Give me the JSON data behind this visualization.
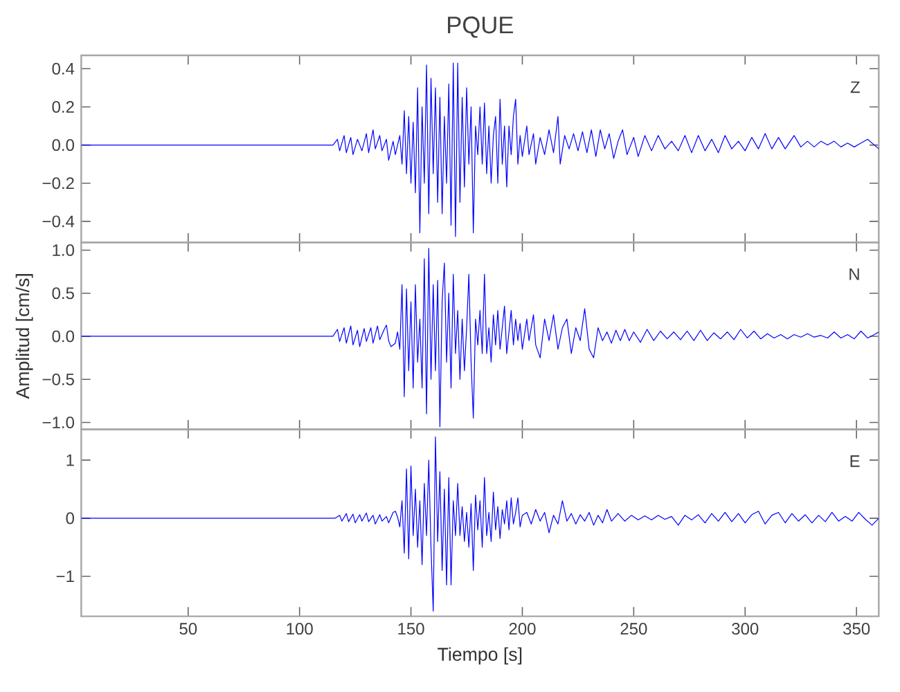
{
  "chart_data": [
    {
      "type": "line",
      "title": "PQUE",
      "color": "#0000ff",
      "annotations": [
        "Z"
      ],
      "tick_labels": "y",
      "xlim": [
        2,
        360
      ],
      "xticks": [
        50,
        100,
        150,
        200,
        250,
        300,
        350
      ],
      "ylim": [
        -0.51,
        0.47
      ],
      "yticks": [
        {
          "value": -0.4,
          "label": "−0.4"
        },
        {
          "value": -0.2,
          "label": "−0.2"
        },
        {
          "value": 0,
          "label": "0.0"
        },
        {
          "value": 0.2,
          "label": "0.2"
        },
        {
          "value": 0.4,
          "label": "0.4"
        }
      ],
      "x": [
        2,
        50,
        100,
        115,
        117,
        118,
        120,
        121,
        123,
        124,
        126,
        128,
        130,
        131,
        133,
        134,
        136,
        137,
        139,
        140,
        142,
        143,
        145,
        146,
        147,
        148,
        149,
        150,
        151,
        152,
        153,
        154,
        155,
        156,
        157,
        158,
        159,
        160,
        161,
        162,
        163,
        164,
        165,
        166,
        167,
        168,
        169,
        170,
        171,
        172,
        173,
        174,
        175,
        176,
        177,
        178,
        179,
        180,
        181,
        182,
        183,
        184,
        185,
        186,
        187,
        188,
        189,
        190,
        191,
        192,
        193,
        194,
        195,
        196,
        197,
        198,
        199,
        200,
        202,
        203,
        205,
        206,
        208,
        210,
        212,
        214,
        216,
        217,
        219,
        221,
        223,
        225,
        227,
        229,
        231,
        233,
        235,
        237,
        239,
        241,
        243,
        245,
        247,
        250,
        252,
        255,
        258,
        261,
        264,
        267,
        270,
        273,
        276,
        279,
        282,
        285,
        288,
        291,
        294,
        297,
        300,
        303,
        306,
        309,
        312,
        315,
        318,
        322,
        325,
        328,
        331,
        334,
        337,
        340,
        343,
        346,
        349,
        352,
        355,
        358,
        360
      ],
      "values": [
        0,
        0,
        0,
        0,
        0.03,
        -0.03,
        0.05,
        -0.04,
        0.04,
        -0.05,
        0.03,
        -0.03,
        0.06,
        -0.04,
        0.08,
        -0.02,
        0.05,
        -0.03,
        0.03,
        -0.08,
        0.02,
        -0.05,
        0.05,
        -0.1,
        0.18,
        -0.15,
        0.15,
        -0.2,
        0.12,
        -0.25,
        0.3,
        -0.46,
        0.2,
        -0.2,
        0.42,
        -0.36,
        0.35,
        -0.15,
        0.3,
        -0.3,
        0.25,
        -0.36,
        0.15,
        -0.2,
        0.32,
        -0.42,
        0.43,
        -0.48,
        0.43,
        -0.3,
        0.25,
        -0.22,
        0.3,
        -0.1,
        0.2,
        -0.46,
        0.1,
        -0.05,
        0.2,
        -0.1,
        0.22,
        -0.15,
        0.1,
        -0.2,
        0.05,
        0.15,
        -0.2,
        0.24,
        -0.1,
        0.1,
        -0.22,
        0.1,
        -0.05,
        0.15,
        0.24,
        -0.1,
        0.05,
        -0.06,
        0.1,
        -0.05,
        0.06,
        -0.1,
        0.04,
        -0.05,
        0.08,
        -0.04,
        0.15,
        -0.1,
        0.05,
        -0.02,
        0.06,
        -0.03,
        0.07,
        -0.04,
        0.08,
        -0.06,
        0.08,
        -0.02,
        0.06,
        -0.07,
        0.02,
        0.08,
        -0.05,
        0.04,
        -0.06,
        0.05,
        -0.03,
        0.05,
        -0.02,
        0.02,
        -0.03,
        0.05,
        -0.04,
        0.05,
        -0.03,
        0.03,
        -0.04,
        0.05,
        -0.02,
        0.02,
        -0.03,
        0.04,
        -0.02,
        0.06,
        -0.02,
        0.04,
        -0.02,
        0.05,
        -0.01,
        0.02,
        -0.01,
        0.02,
        0,
        0.02,
        -0.01,
        0.01,
        -0.01,
        0.01,
        0.03,
        0,
        -0.02
      ]
    },
    {
      "type": "line",
      "ylabel": "Amplitud [cm/s]",
      "color": "#0000ff",
      "annotations": [
        "N"
      ],
      "tick_labels": "y",
      "xlim": [
        2,
        360
      ],
      "xticks": [
        50,
        100,
        150,
        200,
        250,
        300,
        350
      ],
      "ylim": [
        -1.08,
        1.09
      ],
      "yticks": [
        {
          "value": -1,
          "label": "−1.0"
        },
        {
          "value": -0.5,
          "label": "−0.5"
        },
        {
          "value": 0,
          "label": "0.0"
        },
        {
          "value": 0.5,
          "label": "0.5"
        },
        {
          "value": 1,
          "label": "1.0"
        }
      ],
      "x": [
        2,
        50,
        100,
        115,
        117,
        118,
        120,
        121,
        123,
        124,
        126,
        127,
        129,
        130,
        132,
        133,
        135,
        136,
        138,
        139,
        140,
        141,
        143,
        144,
        145,
        146,
        147,
        148,
        149,
        150,
        151,
        152,
        153,
        154,
        155,
        156,
        157,
        158,
        159,
        160,
        161,
        162,
        163,
        164,
        165,
        166,
        167,
        168,
        169,
        170,
        171,
        172,
        173,
        174,
        175,
        176,
        177,
        178,
        179,
        180,
        181,
        182,
        183,
        184,
        185,
        186,
        187,
        188,
        189,
        190,
        191,
        192,
        193,
        194,
        195,
        196,
        197,
        198,
        199,
        200,
        202,
        203,
        205,
        206,
        208,
        210,
        212,
        214,
        216,
        218,
        220,
        222,
        224,
        226,
        228,
        230,
        232,
        234,
        236,
        238,
        240,
        242,
        244,
        246,
        248,
        250,
        253,
        256,
        259,
        262,
        265,
        268,
        271,
        274,
        277,
        280,
        283,
        286,
        289,
        292,
        295,
        298,
        301,
        304,
        307,
        310,
        313,
        316,
        319,
        322,
        325,
        328,
        331,
        334,
        337,
        340,
        343,
        346,
        349,
        352,
        355,
        358,
        360
      ],
      "values": [
        0,
        0,
        0,
        0,
        0.08,
        -0.06,
        0.1,
        -0.08,
        0.12,
        -0.1,
        0.07,
        -0.12,
        0.09,
        -0.06,
        0.1,
        -0.08,
        0.12,
        -0.04,
        0.08,
        0.13,
        -0.05,
        -0.12,
        -0.08,
        0.05,
        -0.15,
        0.6,
        -0.7,
        0.55,
        -0.4,
        0.4,
        -0.6,
        0.6,
        -0.3,
        0.2,
        -0.6,
        0.9,
        -0.9,
        1.02,
        -0.5,
        0.6,
        -0.4,
        0.65,
        -1.05,
        0.4,
        0.85,
        -0.3,
        0.5,
        -0.6,
        0.72,
        -0.2,
        0.3,
        -0.5,
        0.2,
        -0.4,
        0.1,
        0.72,
        -0.3,
        -0.95,
        0.2,
        -0.1,
        0.3,
        -0.2,
        0.72,
        -0.2,
        0.1,
        -0.3,
        0.25,
        -0.1,
        0.3,
        -0.15,
        0.1,
        0.35,
        -0.2,
        0.05,
        0.3,
        -0.1,
        0.2,
        -0.05,
        0.15,
        -0.15,
        0.2,
        -0.05,
        0.25,
        -0.1,
        -0.25,
        0.2,
        -0.05,
        0.25,
        -0.15,
        0.1,
        0.2,
        -0.2,
        0.1,
        -0.05,
        0.32,
        -0.15,
        -0.25,
        0.1,
        -0.05,
        0.05,
        -0.08,
        0.07,
        -0.05,
        0.08,
        -0.05,
        0.05,
        -0.07,
        0.08,
        -0.05,
        0.06,
        -0.03,
        0.05,
        -0.04,
        0.06,
        -0.05,
        0.07,
        -0.05,
        0.04,
        -0.03,
        0.05,
        -0.04,
        0.08,
        -0.02,
        0.06,
        -0.03,
        0.03,
        -0.02,
        0.02,
        -0.03,
        0.02,
        -0.01,
        0.03,
        -0.01,
        0.01,
        -0.02,
        0.05,
        -0.02,
        0.02,
        -0.03,
        0.06,
        -0.02,
        0.02,
        0.05
      ]
    },
    {
      "type": "line",
      "xlabel": "Tiempo [s]",
      "color": "#0000ff",
      "annotations": [
        "E"
      ],
      "xlim": [
        2,
        360
      ],
      "xticks": [
        50,
        100,
        150,
        200,
        250,
        300,
        350
      ],
      "ylim": [
        -1.69,
        1.53
      ],
      "yticks": [
        {
          "value": -1,
          "label": "−1"
        },
        0,
        1
      ],
      "x": [
        2,
        50,
        100,
        116,
        118,
        119,
        121,
        122,
        124,
        125,
        127,
        128,
        130,
        131,
        133,
        134,
        136,
        137,
        139,
        140,
        142,
        143,
        144,
        145,
        146,
        147,
        148,
        149,
        150,
        151,
        152,
        153,
        154,
        155,
        156,
        157,
        158,
        159,
        160,
        161,
        162,
        163,
        164,
        165,
        166,
        167,
        168,
        169,
        170,
        171,
        172,
        173,
        174,
        175,
        176,
        177,
        178,
        179,
        180,
        181,
        182,
        183,
        184,
        185,
        186,
        187,
        188,
        189,
        190,
        191,
        192,
        193,
        194,
        195,
        196,
        197,
        198,
        199,
        200,
        202,
        204,
        206,
        208,
        210,
        212,
        214,
        216,
        218,
        220,
        222,
        224,
        226,
        228,
        230,
        232,
        234,
        236,
        238,
        240,
        243,
        246,
        249,
        252,
        255,
        258,
        261,
        264,
        267,
        270,
        273,
        276,
        279,
        282,
        285,
        288,
        291,
        294,
        297,
        300,
        303,
        306,
        309,
        312,
        315,
        318,
        321,
        324,
        327,
        330,
        333,
        336,
        339,
        342,
        345,
        348,
        351,
        354,
        357,
        360
      ],
      "values": [
        0,
        0,
        0,
        0,
        0.05,
        -0.05,
        0.08,
        -0.06,
        0.07,
        -0.08,
        0.06,
        -0.05,
        0.09,
        -0.06,
        0.05,
        -0.1,
        0.06,
        -0.05,
        0.03,
        -0.08,
        0.1,
        0.12,
        0.02,
        -0.15,
        0.3,
        -0.6,
        0.85,
        -0.7,
        0.9,
        -0.3,
        0.5,
        -0.5,
        0.3,
        -0.8,
        0.6,
        -0.3,
        1.0,
        -0.5,
        -1.6,
        1.4,
        -0.4,
        0.8,
        -0.9,
        0.5,
        -1.15,
        0.7,
        -1.15,
        0.3,
        -0.3,
        0.6,
        -0.3,
        0.2,
        -0.4,
        0.1,
        -0.5,
        0.25,
        -0.9,
        0.4,
        -0.2,
        0.3,
        -0.5,
        0.7,
        -0.3,
        0.1,
        -0.4,
        0.45,
        -0.2,
        0.2,
        -0.35,
        0.15,
        -0.1,
        0.3,
        -0.2,
        0.35,
        -0.1,
        0.1,
        0.35,
        -0.15,
        0.05,
        0.1,
        -0.1,
        0.15,
        -0.05,
        0.1,
        -0.25,
        0.05,
        -0.1,
        0.3,
        -0.05,
        0.08,
        -0.1,
        0.06,
        -0.05,
        0.1,
        -0.12,
        0.05,
        -0.08,
        0.15,
        -0.05,
        0.08,
        -0.05,
        0.05,
        -0.03,
        0.04,
        -0.03,
        0.05,
        -0.02,
        0.03,
        -0.12,
        0.05,
        -0.03,
        0.06,
        -0.08,
        0.08,
        -0.05,
        0.1,
        -0.06,
        0.08,
        -0.08,
        0.06,
        0.12,
        -0.1,
        0.05,
        0.1,
        -0.08,
        0.08,
        -0.05,
        0.06,
        -0.08,
        0.05,
        -0.06,
        0.1,
        -0.05,
        0.03,
        -0.05,
        0.1,
        -0.02,
        -0.12,
        0
      ]
    }
  ]
}
